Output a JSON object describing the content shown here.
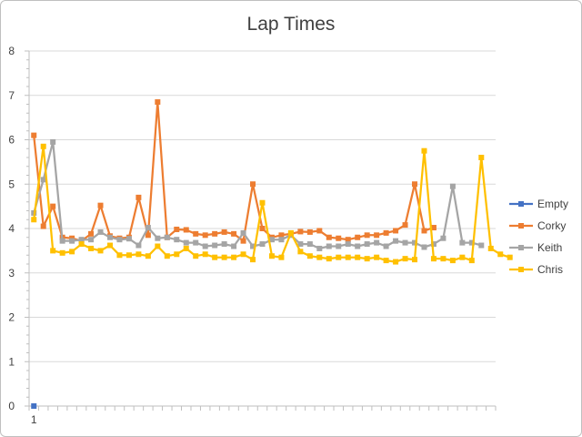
{
  "chart_data": {
    "type": "line",
    "title": "Lap Times",
    "xlabel": "",
    "ylabel": "",
    "ylim": [
      0,
      8
    ],
    "yticks": [
      0,
      1,
      2,
      3,
      4,
      5,
      6,
      7,
      8
    ],
    "x_tick_labels": [
      {
        "x": 1,
        "label": "1"
      }
    ],
    "x_count": 49,
    "grid": "horizontal",
    "legend_position": "right",
    "series": [
      {
        "name": "Empty",
        "color": "#4472c4",
        "values": [
          0
        ]
      },
      {
        "name": "Corky",
        "color": "#ed7d31",
        "values": [
          6.1,
          4.05,
          4.5,
          3.8,
          3.78,
          3.72,
          3.88,
          4.52,
          3.83,
          3.78,
          3.8,
          4.7,
          3.85,
          6.85,
          3.8,
          3.98,
          3.97,
          3.88,
          3.85,
          3.88,
          3.92,
          3.88,
          3.72,
          5.0,
          4.0,
          3.8,
          3.85,
          3.88,
          3.93,
          3.92,
          3.95,
          3.8,
          3.78,
          3.75,
          3.8,
          3.85,
          3.85,
          3.9,
          3.95,
          4.08,
          5.0,
          3.95,
          4.02
        ]
      },
      {
        "name": "Keith",
        "color": "#a5a5a5",
        "values": [
          4.35,
          5.1,
          5.95,
          3.72,
          3.72,
          3.75,
          3.75,
          3.92,
          3.8,
          3.75,
          3.77,
          3.62,
          4.02,
          3.78,
          3.8,
          3.75,
          3.68,
          3.68,
          3.6,
          3.62,
          3.65,
          3.6,
          3.9,
          3.6,
          3.65,
          3.75,
          3.75,
          3.85,
          3.65,
          3.65,
          3.55,
          3.6,
          3.6,
          3.65,
          3.6,
          3.65,
          3.68,
          3.6,
          3.72,
          3.68,
          3.68,
          3.58,
          3.65,
          3.78,
          4.95,
          3.68,
          3.68,
          3.62
        ]
      },
      {
        "name": "Chris",
        "color": "#ffc000",
        "values": [
          4.2,
          5.85,
          3.5,
          3.45,
          3.48,
          3.65,
          3.55,
          3.5,
          3.62,
          3.4,
          3.4,
          3.42,
          3.38,
          3.6,
          3.38,
          3.42,
          3.55,
          3.38,
          3.42,
          3.35,
          3.35,
          3.35,
          3.42,
          3.3,
          4.58,
          3.38,
          3.35,
          3.9,
          3.48,
          3.38,
          3.35,
          3.32,
          3.35,
          3.35,
          3.35,
          3.32,
          3.35,
          3.28,
          3.25,
          3.32,
          3.3,
          5.75,
          3.32,
          3.32,
          3.28,
          3.35,
          3.28,
          5.6,
          3.55,
          3.42,
          3.35
        ]
      }
    ]
  }
}
